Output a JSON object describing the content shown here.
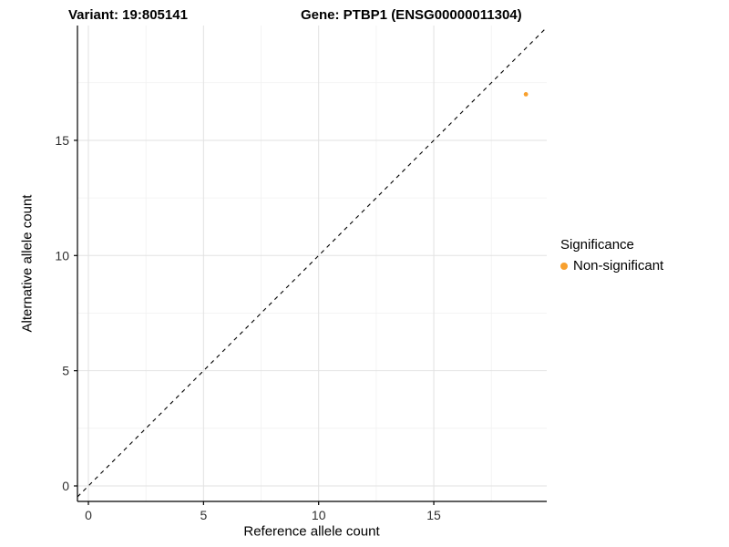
{
  "titles": {
    "left": "Variant: 19:805141",
    "right": "Gene: PTBP1 (ENSG00000011304)"
  },
  "legend": {
    "title": "Significance",
    "items": [
      {
        "label": "Non-significant",
        "color": "#F8A02E"
      }
    ]
  },
  "chart_data": {
    "type": "scatter",
    "title": "Variant: 19:805141   Gene: PTBP1 (ENSG00000011304)",
    "xlabel": "Reference allele count",
    "ylabel": "Alternative allele count",
    "xlim": [
      -0.5,
      19.9
    ],
    "ylim": [
      -0.7,
      20.0
    ],
    "x_ticks": [
      0,
      5,
      10,
      15
    ],
    "y_ticks": [
      0,
      5,
      10,
      15
    ],
    "minor_ticks": [
      2.5,
      7.5,
      12.5,
      17.5
    ],
    "grid": true,
    "legend_position": "right",
    "legend_title": "Significance",
    "reference_line": {
      "kind": "identity y=x",
      "style": "dashed",
      "color": "#000000"
    },
    "series": [
      {
        "name": "Non-significant",
        "color": "#F8A02E",
        "points": [
          {
            "x": 19,
            "y": 17
          }
        ]
      }
    ],
    "colors": {
      "major_grid": "#E2E2E2",
      "minor_grid": "#F1F1F1",
      "axis_line": "#000000",
      "tick_text": "#303030"
    }
  }
}
